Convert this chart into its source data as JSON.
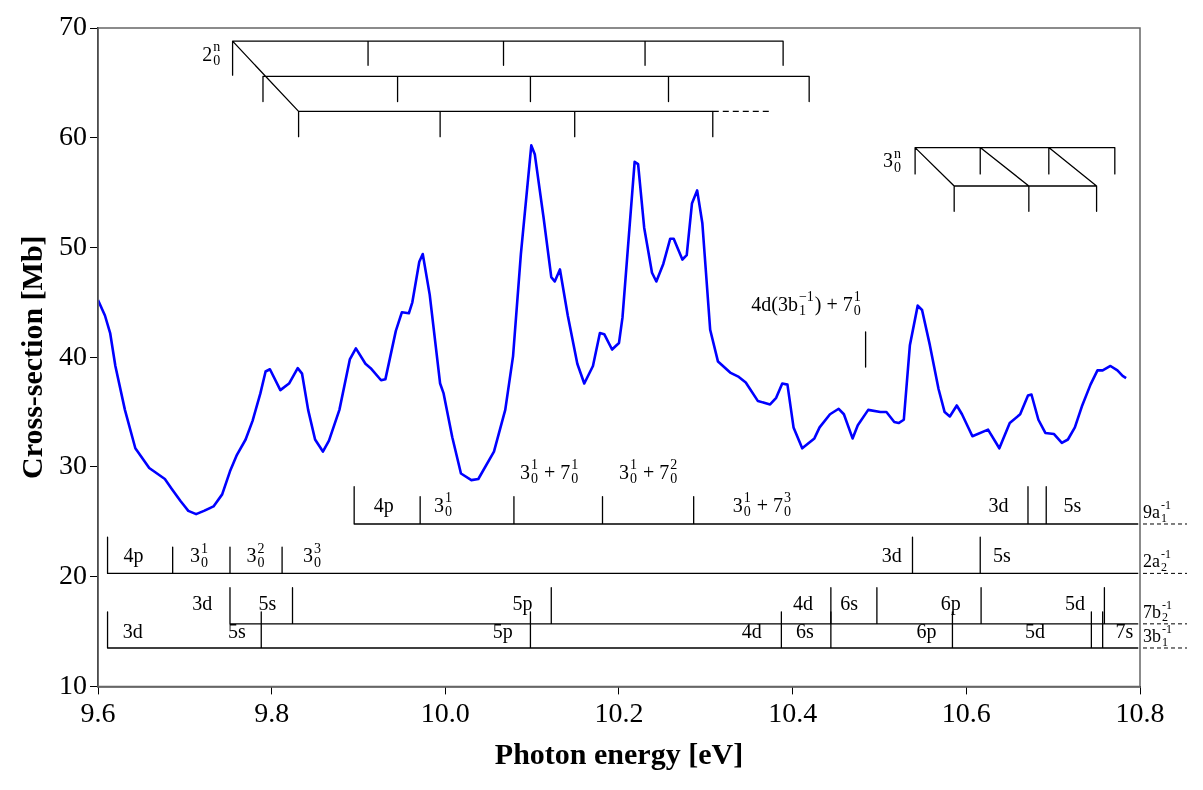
{
  "chart_data": {
    "type": "line",
    "xlabel": "Photon energy [eV]",
    "ylabel": "Cross-section [Mb]",
    "xlim": [
      9.6,
      10.8
    ],
    "xticks": [
      9.6,
      9.8,
      {
        "value": 10,
        "label": "10.0"
      },
      10.2,
      10.4,
      10.6,
      10.8
    ],
    "ylim": [
      10,
      70
    ],
    "yticks": [
      10,
      20,
      30,
      40,
      50,
      60,
      70
    ],
    "grid": false,
    "legend": false,
    "series": [
      {
        "color": "#0000ff",
        "x": [
          9.6,
          9.608,
          9.614,
          9.62,
          9.631,
          9.643,
          9.659,
          9.668,
          9.677,
          9.685,
          9.695,
          9.704,
          9.713,
          9.722,
          9.733,
          9.743,
          9.752,
          9.76,
          9.77,
          9.778,
          9.787,
          9.793,
          9.798,
          9.81,
          9.82,
          9.83,
          9.835,
          9.842,
          9.85,
          9.859,
          9.866,
          9.878,
          9.89,
          9.897,
          9.908,
          9.914,
          9.926,
          9.931,
          9.943,
          9.95,
          9.958,
          9.962,
          9.97,
          9.974,
          9.982,
          9.994,
          9.998,
          10.008,
          10.018,
          10.03,
          10.038,
          10.056,
          10.069,
          10.078,
          10.087,
          10.099,
          10.103,
          10.113,
          10.122,
          10.126,
          10.132,
          10.141,
          10.152,
          10.16,
          10.17,
          10.178,
          10.183,
          10.192,
          10.2,
          10.204,
          10.218,
          10.222,
          10.229,
          10.238,
          10.243,
          10.251,
          10.259,
          10.263,
          10.273,
          10.278,
          10.284,
          10.29,
          10.296,
          10.305,
          10.314,
          10.328,
          10.338,
          10.346,
          10.36,
          10.374,
          10.381,
          10.388,
          10.394,
          10.401,
          10.411,
          10.425,
          10.431,
          10.443,
          10.453,
          10.459,
          10.469,
          10.475,
          10.487,
          10.501,
          10.508,
          10.517,
          10.522,
          10.528,
          10.535,
          10.544,
          10.549,
          10.558,
          10.568,
          10.575,
          10.581,
          10.589,
          10.595,
          10.607,
          10.625,
          10.638,
          10.65,
          10.662,
          10.671,
          10.675,
          10.683,
          10.691,
          10.701,
          10.71,
          10.717,
          10.725,
          10.733,
          10.743,
          10.751,
          10.757,
          10.766,
          10.774,
          10.78,
          10.784
        ],
        "values": [
          45.2,
          43.8,
          42.2,
          39.2,
          35.2,
          31.7,
          29.9,
          29.4,
          28.9,
          28.0,
          26.9,
          26.0,
          25.7,
          26.0,
          26.4,
          27.5,
          29.6,
          31.1,
          32.5,
          34.2,
          36.7,
          38.7,
          38.9,
          37.0,
          37.6,
          39.0,
          38.5,
          35.2,
          32.5,
          31.4,
          32.4,
          35.2,
          39.8,
          40.8,
          39.4,
          39.0,
          37.9,
          38.0,
          42.4,
          44.1,
          44.0,
          45.0,
          48.7,
          49.4,
          45.7,
          37.6,
          36.7,
          32.7,
          29.4,
          28.8,
          28.9,
          31.4,
          35.2,
          40.1,
          49.4,
          59.3,
          58.5,
          52.8,
          47.3,
          46.9,
          48.0,
          43.8,
          39.4,
          37.6,
          39.2,
          42.2,
          42.1,
          40.7,
          41.3,
          43.6,
          57.8,
          57.6,
          51.8,
          47.7,
          46.9,
          48.5,
          50.8,
          50.8,
          48.9,
          49.3,
          54.0,
          55.2,
          52.2,
          42.5,
          39.6,
          38.6,
          38.2,
          37.7,
          36.0,
          35.7,
          36.3,
          37.6,
          37.5,
          33.6,
          31.7,
          32.6,
          33.6,
          34.8,
          35.3,
          34.8,
          32.6,
          33.8,
          35.2,
          35.0,
          35.0,
          34.1,
          34.0,
          34.3,
          41.1,
          44.7,
          44.3,
          41.1,
          37.1,
          35.0,
          34.6,
          35.6,
          34.8,
          32.8,
          33.4,
          31.7,
          34.0,
          34.8,
          36.5,
          36.6,
          34.3,
          33.1,
          33.0,
          32.2,
          32.5,
          33.6,
          35.5,
          37.5,
          38.8,
          38.8,
          39.2,
          38.8,
          38.3,
          38.1
        ]
      },
      {
        "color": "#000000",
        "x": [
          9.755,
          10.389,
          null,
          9.755,
          9.755,
          null,
          9.911,
          9.911,
          null,
          10.067,
          10.067,
          null,
          10.23,
          10.23,
          null,
          10.389,
          10.389,
          null,
          9.755,
          9.831,
          null,
          9.79,
          10.419,
          null,
          9.79,
          9.79,
          null,
          9.945,
          9.945,
          null,
          10.098,
          10.098,
          null,
          10.257,
          10.257,
          null,
          10.419,
          10.419,
          null,
          9.831,
          10.308,
          null,
          9.831,
          9.831,
          null,
          9.994,
          9.994,
          null,
          10.149,
          10.149,
          null,
          10.308,
          10.308,
          null
        ],
        "values": [
          68.8,
          68.8,
          null,
          68.8,
          65.7,
          null,
          68.8,
          66.6,
          null,
          68.8,
          66.6,
          null,
          68.8,
          66.6,
          null,
          68.8,
          66.6,
          null,
          68.8,
          62.4,
          null,
          65.6,
          65.6,
          null,
          65.6,
          63.3,
          null,
          65.6,
          63.3,
          null,
          65.6,
          63.3,
          null,
          65.6,
          63.3,
          null,
          65.6,
          63.3,
          null,
          62.4,
          62.4,
          null,
          62.4,
          60.1,
          null,
          62.4,
          60.1,
          null,
          62.4,
          60.1,
          null,
          62.4,
          60.1,
          null
        ]
      },
      {
        "color": "#000000",
        "line_style": "dashed",
        "x": [
          10.308,
          10.375
        ],
        "values": [
          62.4,
          62.4
        ]
      },
      {
        "color": "#000000",
        "x": [
          10.541,
          10.771,
          null,
          10.541,
          10.541,
          null,
          10.616,
          10.616,
          null,
          10.695,
          10.695,
          null,
          10.771,
          10.771,
          null,
          10.541,
          10.586,
          null,
          10.616,
          10.672,
          null,
          10.695,
          10.75,
          null,
          10.586,
          10.75,
          null,
          10.586,
          10.586,
          null,
          10.672,
          10.672,
          null,
          10.75,
          10.75,
          null
        ],
        "values": [
          59.1,
          59.1,
          null,
          59.1,
          56.7,
          null,
          59.1,
          56.7,
          null,
          59.1,
          56.7,
          null,
          59.1,
          56.7,
          null,
          59.1,
          55.6,
          null,
          59.1,
          55.6,
          null,
          59.1,
          55.6,
          null,
          55.6,
          55.6,
          null,
          55.6,
          53.3,
          null,
          55.6,
          53.3,
          null,
          55.6,
          53.3,
          null
        ]
      },
      {
        "color": "#000000",
        "x": [
          10.484,
          10.484
        ],
        "values": [
          42.3,
          39.1
        ]
      },
      {
        "color": "#000000",
        "x": [
          9.895,
          10.798,
          null,
          9.895,
          9.895,
          null,
          9.971,
          9.971,
          null,
          10.079,
          10.079,
          null,
          10.181,
          10.181,
          null,
          10.286,
          10.286,
          null,
          10.671,
          10.671,
          null,
          10.692,
          10.692
        ],
        "values": [
          24.8,
          24.8,
          null,
          28.2,
          24.8,
          null,
          27.3,
          24.8,
          null,
          27.3,
          24.8,
          null,
          27.3,
          24.8,
          null,
          27.3,
          24.8,
          null,
          28.2,
          24.8,
          null,
          28.2,
          24.8
        ]
      },
      {
        "color": "#000000",
        "x": [
          9.611,
          10.798,
          null,
          9.611,
          9.611,
          null,
          9.686,
          9.686,
          null,
          9.752,
          9.752,
          null,
          9.812,
          9.812,
          null,
          10.538,
          10.538,
          null,
          10.616,
          10.616
        ],
        "values": [
          20.3,
          20.3,
          null,
          23.6,
          20.3,
          null,
          22.7,
          20.3,
          null,
          22.7,
          20.3,
          null,
          22.7,
          20.3,
          null,
          23.6,
          20.3,
          null,
          23.6,
          20.3
        ]
      },
      {
        "color": "#000000",
        "x": [
          9.752,
          10.798,
          null,
          9.752,
          9.752,
          null,
          9.824,
          9.824,
          null,
          10.122,
          10.122,
          null,
          10.444,
          10.444,
          null,
          10.497,
          10.497,
          null,
          10.617,
          10.617,
          null,
          10.759,
          10.759
        ],
        "values": [
          15.7,
          15.7,
          null,
          19.0,
          15.7,
          null,
          19.0,
          15.7,
          null,
          19.0,
          15.7,
          null,
          19.0,
          15.7,
          null,
          19.0,
          15.7,
          null,
          19.0,
          15.7,
          null,
          19.0,
          15.7
        ]
      },
      {
        "color": "#000000",
        "x": [
          9.611,
          10.798,
          null,
          9.611,
          9.611,
          null,
          9.788,
          9.788,
          null,
          10.098,
          10.098,
          null,
          10.387,
          10.387,
          null,
          10.444,
          10.444,
          null,
          10.584,
          10.584,
          null,
          10.744,
          10.744,
          null,
          10.757,
          10.757
        ],
        "values": [
          13.5,
          13.5,
          null,
          16.8,
          13.5,
          null,
          16.8,
          13.5,
          null,
          16.8,
          13.5,
          null,
          16.8,
          13.5,
          null,
          16.8,
          13.5,
          null,
          16.8,
          13.5,
          null,
          16.8,
          13.5,
          null,
          16.8,
          13.5
        ]
      }
    ],
    "annotations": [
      "2$_{0}$$^{n}$",
      "3$_{0}$$^{n}$",
      "4d(3b$_{1}$$^{−1}$) + 7$_{0}$$^{1}$",
      "4p",
      "3$_{0}$$^{1}$",
      "3$_{0}$$^{1}$ + 7$_{0}$$^{1}$",
      "3$_{0}$$^{1}$ + 7$_{0}$$^{2}$",
      "3$_{0}$$^{1}$ + 7$_{0}$$^{3}$",
      "3d",
      "5s",
      "4p",
      "3$_{0}$$^{1}$",
      "3$_{0}$$^{2}$",
      "3$_{0}$$^{3}$",
      "3d",
      "5s",
      "3d",
      "5s",
      "5p",
      "4d",
      "6s",
      "6p",
      "5d",
      "3d",
      "5s",
      "5p",
      "4d",
      "6s",
      "6p",
      "5d",
      "7s",
      "9a$_{1}$$^{-1}$",
      "2a$_{2}$$^{-1}$",
      "7b$_{2}$$^{-1}$",
      "3b$_{1}$$^{-1}$"
    ]
  }
}
